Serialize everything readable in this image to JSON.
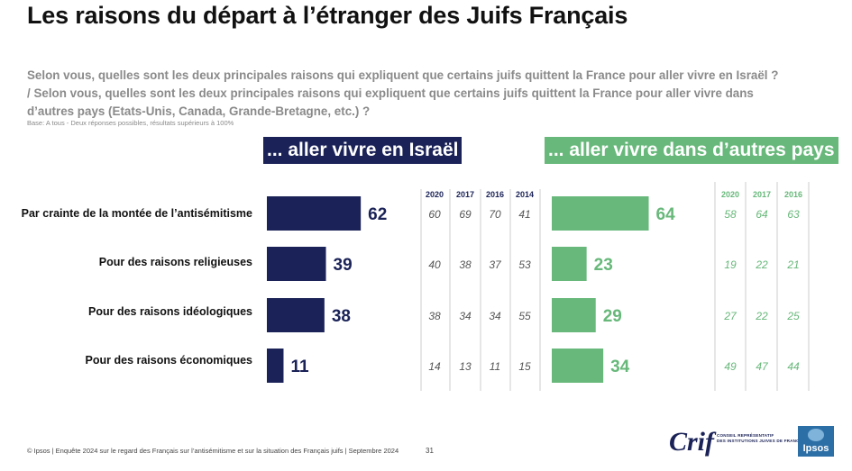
{
  "title": "Les raisons du départ à l’étranger des Juifs Français",
  "question": {
    "line1": "Selon vous, quelles sont les deux principales raisons qui expliquent que certains juifs quittent la France pour aller vivre en Israël ?",
    "line2": "/ Selon vous, quelles sont les deux principales raisons qui expliquent que certains juifs quittent la France pour aller vivre dans",
    "line3": "d’autres pays (Etats-Unis, Canada, Grande-Bretagne, etc.) ?"
  },
  "base": "Base: A tous - Deux réponses possibles, résultats supérieurs à 100%",
  "header_israel": "... aller vivre en Israël",
  "header_other": "... aller vivre dans d’autres pays",
  "footer": "© Ipsos | Enquête 2024 sur le regard des Français sur l’antisémitisme et sur la situation des Français juifs | Septembre 2024",
  "page_number": "31",
  "logo": {
    "crif": "Crif",
    "crif_line1": "CONSEIL REPRÉSENTATIF",
    "crif_line2": "DES INSTITUTIONS JUIVES DE FRANCE",
    "ipsos": "Ipsos"
  },
  "colors": {
    "israel": "#1a2257",
    "other": "#67b87a",
    "history_israel": "#555555"
  },
  "chart_data": {
    "type": "bar",
    "orientation": "horizontal",
    "categories": [
      "Par crainte de la montée de l’antisémitisme",
      "Pour des raisons religieuses",
      "Pour des raisons idéologiques",
      "Pour des raisons économiques"
    ],
    "series": [
      {
        "name": "... aller vivre en Israël",
        "values": [
          62,
          39,
          38,
          11
        ]
      },
      {
        "name": "... aller vivre dans d’autres pays",
        "values": [
          64,
          23,
          29,
          34
        ]
      }
    ],
    "history_israel": {
      "years": [
        "2020",
        "2017",
        "2016",
        "2014"
      ],
      "rows": [
        [
          60,
          69,
          70,
          41
        ],
        [
          40,
          38,
          37,
          53
        ],
        [
          38,
          34,
          34,
          55
        ],
        [
          14,
          13,
          11,
          15
        ]
      ]
    },
    "history_other": {
      "years": [
        "2020",
        "2017",
        "2016"
      ],
      "rows": [
        [
          58,
          64,
          63
        ],
        [
          19,
          22,
          21
        ],
        [
          27,
          22,
          25
        ],
        [
          49,
          47,
          44
        ]
      ]
    },
    "unit": "%"
  }
}
